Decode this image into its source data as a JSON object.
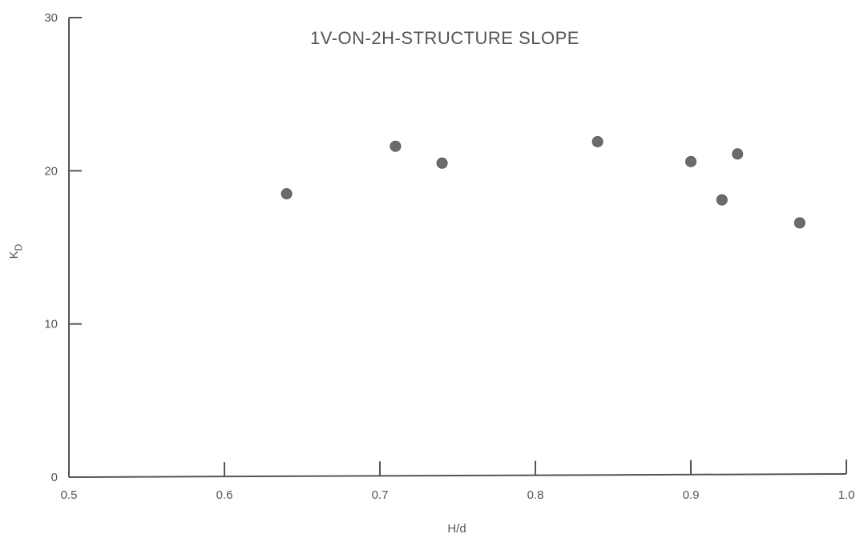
{
  "chart_data": {
    "type": "scatter",
    "title": "1V-ON-2H-STRUCTURE SLOPE",
    "xlabel": "H/d",
    "ylabel_main": "K",
    "ylabel_sub": "D",
    "xlim": [
      0.5,
      1.0
    ],
    "ylim": [
      0,
      30
    ],
    "x_ticks": [
      0.5,
      0.6,
      0.7,
      0.8,
      0.9,
      1.0
    ],
    "x_tick_labels": [
      "0.5",
      "0.6",
      "0.7",
      "0.8",
      "0.9",
      "1.0"
    ],
    "y_ticks": [
      0,
      10,
      20,
      30
    ],
    "y_tick_labels": [
      "0",
      "10",
      "20",
      "30"
    ],
    "grid": false,
    "points": [
      {
        "x": 0.64,
        "y": 18.5
      },
      {
        "x": 0.71,
        "y": 21.6
      },
      {
        "x": 0.74,
        "y": 20.5
      },
      {
        "x": 0.84,
        "y": 21.9
      },
      {
        "x": 0.9,
        "y": 20.6
      },
      {
        "x": 0.92,
        "y": 18.1
      },
      {
        "x": 0.93,
        "y": 21.1
      },
      {
        "x": 0.97,
        "y": 16.6
      }
    ],
    "colors": {
      "axis": "#555555",
      "point": "#6b6b6b"
    }
  }
}
